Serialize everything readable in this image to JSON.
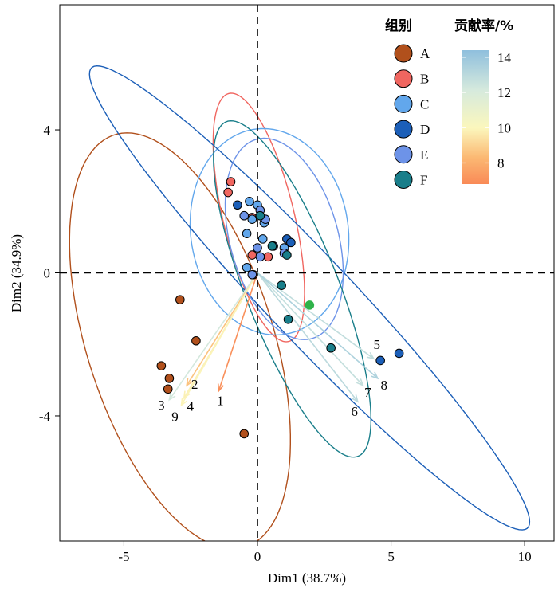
{
  "chart_data": {
    "type": "scatter",
    "subtype": "PCA biplot",
    "xlabel": "Dim1 (38.7%)",
    "ylabel": "Dim2 (34.9%)",
    "xlim": [
      -7.4,
      11.1
    ],
    "ylim": [
      -7.5,
      7.5
    ],
    "xticks": [
      "-5",
      "0",
      "5",
      "10"
    ],
    "yticks": [
      "-4",
      "0",
      "4"
    ],
    "reference_lines": {
      "x": 0,
      "y": 0,
      "style": "dashed"
    },
    "legend": {
      "title": "组别",
      "placement": "top-right"
    },
    "colorbar": {
      "title": "贡献率/%",
      "ticks": [
        "14",
        "12",
        "10",
        "8"
      ],
      "range": [
        6.8,
        14.4
      ],
      "low_color": "#f98a57",
      "mid_color": "#fbf7bd",
      "high_color": "#8fbfdd"
    },
    "series": [
      {
        "name": "A",
        "color": "#b1501c",
        "points": [
          [
            -2.9,
            -0.75
          ],
          [
            -2.3,
            -1.9
          ],
          [
            -3.6,
            -2.6
          ],
          [
            -3.3,
            -2.95
          ],
          [
            -3.35,
            -3.25
          ],
          [
            -0.5,
            -4.5
          ]
        ],
        "ellipse": {
          "cx": -2.9,
          "cy": -1.9,
          "rx": 6.3,
          "ry": 3.35,
          "angle": -63
        }
      },
      {
        "name": "B",
        "color": "#f06660",
        "points": [
          [
            -1.0,
            2.55
          ],
          [
            -1.1,
            2.25
          ],
          [
            -0.2,
            1.55
          ],
          [
            -0.2,
            0.5
          ],
          [
            0.4,
            0.45
          ],
          [
            -0.15,
            -0.05
          ]
        ],
        "ellipse": {
          "cx": 0.05,
          "cy": 1.55,
          "rx": 3.65,
          "ry": 1.3,
          "angle": -71
        }
      },
      {
        "name": "C",
        "color": "#62a7ec",
        "points": [
          [
            -0.3,
            2.0
          ],
          [
            0.0,
            1.9
          ],
          [
            -0.2,
            1.5
          ],
          [
            0.25,
            1.4
          ],
          [
            -0.4,
            1.1
          ],
          [
            0.2,
            0.95
          ],
          [
            1.0,
            0.7
          ],
          [
            -0.4,
            0.15
          ]
        ],
        "ellipse": {
          "cx": 0.45,
          "cy": 1.15,
          "rx": 3.05,
          "ry": 2.8,
          "angle": -35
        }
      },
      {
        "name": "D",
        "color": "#1c5fb8",
        "points": [
          [
            -0.75,
            1.9
          ],
          [
            1.1,
            0.95
          ],
          [
            1.25,
            0.85
          ],
          [
            4.6,
            -2.45
          ],
          [
            5.3,
            -2.25
          ]
        ],
        "ellipse": {
          "cx": 1.95,
          "cy": -0.7,
          "rx": 10.4,
          "ry": 1.35,
          "angle": -38
        }
      },
      {
        "name": "E",
        "color": "#6d93e8",
        "points": [
          [
            -0.5,
            1.6
          ],
          [
            0.1,
            1.75
          ],
          [
            0.3,
            1.5
          ],
          [
            0.0,
            0.7
          ],
          [
            0.1,
            0.45
          ],
          [
            1.0,
            0.55
          ],
          [
            0.6,
            0.75
          ],
          [
            -0.2,
            -0.05
          ]
        ],
        "ellipse": {
          "cx": 1.0,
          "cy": 0.95,
          "rx": 3.0,
          "ry": 1.95,
          "angle": -63
        }
      },
      {
        "name": "F",
        "color": "#197e8a",
        "points": [
          [
            0.1,
            1.6
          ],
          [
            0.55,
            0.75
          ],
          [
            1.1,
            0.5
          ],
          [
            0.9,
            -0.35
          ],
          [
            1.15,
            -1.3
          ],
          [
            2.75,
            -2.1
          ]
        ],
        "ellipse": {
          "cx": 1.3,
          "cy": -0.45,
          "rx": 5.3,
          "ry": 1.65,
          "angle": -61
        }
      }
    ],
    "extra_points": [
      {
        "x": 1.95,
        "y": -0.9,
        "color": "#2fb34a"
      }
    ],
    "loadings": [
      {
        "label": "1",
        "x": -1.45,
        "y": -3.3,
        "value": 7.0
      },
      {
        "label": "2",
        "x": -2.65,
        "y": -3.15,
        "value": 8.6
      },
      {
        "label": "3",
        "x": -3.3,
        "y": -3.55,
        "value": 12.2
      },
      {
        "label": "4",
        "x": -2.75,
        "y": -3.5,
        "value": 9.8
      },
      {
        "label": "9",
        "x": -2.85,
        "y": -3.7,
        "value": 9.9
      },
      {
        "label": "5",
        "x": 4.35,
        "y": -2.4,
        "value": 12.8
      },
      {
        "label": "6",
        "x": 3.75,
        "y": -3.6,
        "value": 13.0
      },
      {
        "label": "7",
        "x": 3.95,
        "y": -3.15,
        "value": 12.7
      },
      {
        "label": "8",
        "x": 4.5,
        "y": -2.95,
        "value": 13.4
      }
    ]
  }
}
